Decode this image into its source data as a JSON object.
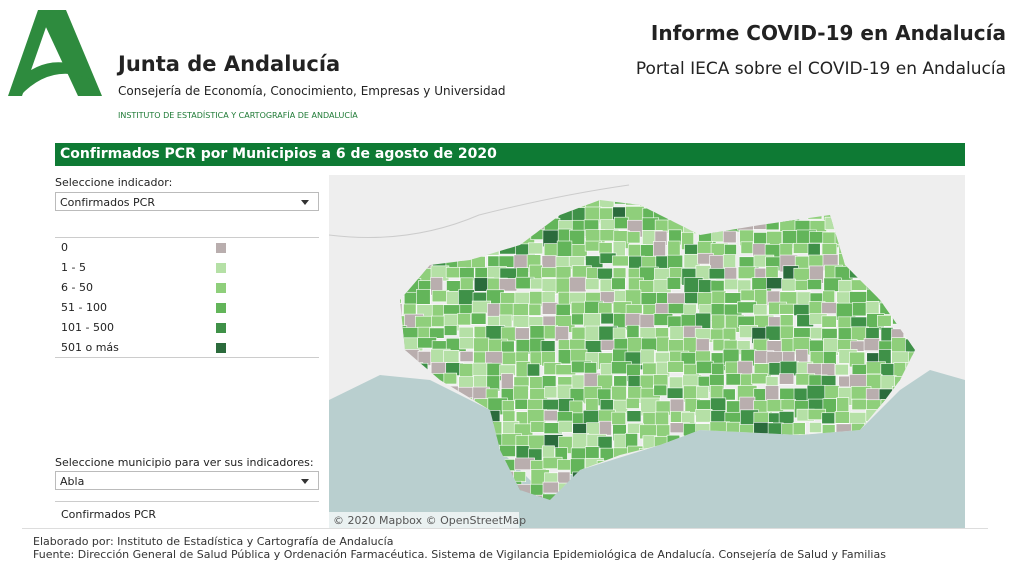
{
  "header": {
    "org": "Junta de Andalucía",
    "department": "Consejería de Economía, Conocimiento, Empresas y Universidad",
    "institute": "INSTITUTO DE ESTADÍSTICA Y CARTOGRAFÍA DE ANDALUCÍA",
    "title": "Informe COVID-19 en Andalucía",
    "subtitle": "Portal IECA sobre el COVID-19 en Andalucía"
  },
  "panel": {
    "title": "Confirmados PCR por Municipios a 6 de agosto de 2020",
    "indicator_label": "Seleccione indicador:",
    "indicator_value": "Confirmados PCR",
    "legend": [
      {
        "label": "0",
        "color": "#b9aeae"
      },
      {
        "label": "1 - 5",
        "color": "#b5e0a6"
      },
      {
        "label": "6 - 50",
        "color": "#8fcf7b"
      },
      {
        "label": "51 - 100",
        "color": "#63b55a"
      },
      {
        "label": "101 - 500",
        "color": "#3f9148"
      },
      {
        "label": "501 o más",
        "color": "#2b6b3c"
      }
    ],
    "municipio_label": "Seleccione municipio para ver sus indicadores:",
    "municipio_value": "Abla",
    "selected_indicator": "Confirmados PCR",
    "map_attribution": "© 2020 Mapbox © OpenStreetMap"
  },
  "footer": {
    "line1": "Elaborado por: Instituto de Estadística y Cartografía de Andalucía",
    "line2": "Fuente: Dirección General de Salud Pública y Ordenación Farmacéutica. Sistema de Vigilancia Epidemiológica de Andalucía. Consejería de Salud y Familias"
  }
}
